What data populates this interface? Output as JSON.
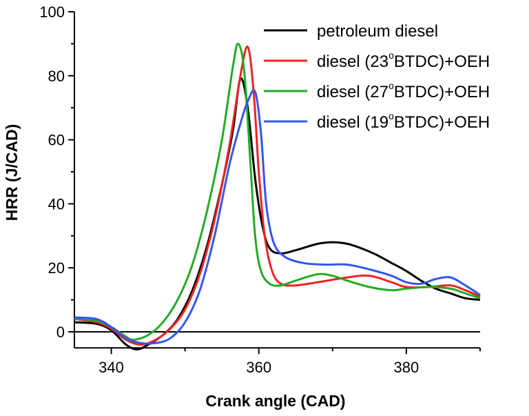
{
  "chart_data": {
    "type": "line",
    "xlabel": "Crank angle (CAD)",
    "ylabel": "HRR (J/CAD)",
    "xlim": [
      335,
      390
    ],
    "ylim": [
      -5,
      100
    ],
    "x_ticks": [
      340,
      360,
      380
    ],
    "y_ticks": [
      0,
      20,
      40,
      60,
      80,
      100
    ],
    "grid": false,
    "legend_position": "top-right",
    "series": [
      {
        "name": "petroleum diesel",
        "legend_parts": [
          "petroleum diesel"
        ],
        "color": "#000000",
        "points": [
          [
            335,
            3
          ],
          [
            338,
            2.5
          ],
          [
            340,
            0.5
          ],
          [
            342,
            -4
          ],
          [
            343.5,
            -5.5
          ],
          [
            345,
            -4
          ],
          [
            347,
            -1
          ],
          [
            349,
            4
          ],
          [
            351,
            13
          ],
          [
            353,
            27
          ],
          [
            355,
            46
          ],
          [
            356.5,
            63
          ],
          [
            357.5,
            79
          ],
          [
            358.5,
            70
          ],
          [
            359.5,
            48
          ],
          [
            360.5,
            33
          ],
          [
            361.5,
            26
          ],
          [
            363,
            24.5
          ],
          [
            365,
            25.5
          ],
          [
            368,
            27.5
          ],
          [
            370,
            28
          ],
          [
            372,
            27.5
          ],
          [
            374,
            26
          ],
          [
            376,
            24
          ],
          [
            378,
            21.5
          ],
          [
            380,
            19
          ],
          [
            382,
            16
          ],
          [
            384,
            13.5
          ],
          [
            386,
            12
          ],
          [
            388,
            10.5
          ],
          [
            390,
            10
          ]
        ]
      },
      {
        "name": "diesel (23oBTDC)+OEH",
        "legend_parts": [
          "diesel (23",
          "o",
          "BTDC)+OEH"
        ],
        "color": "#ee2222",
        "points": [
          [
            335,
            4
          ],
          [
            338,
            3
          ],
          [
            340,
            1
          ],
          [
            342,
            -2.5
          ],
          [
            344,
            -4
          ],
          [
            346,
            -2.5
          ],
          [
            348,
            1
          ],
          [
            350,
            7
          ],
          [
            352,
            18
          ],
          [
            354,
            35
          ],
          [
            356,
            58
          ],
          [
            357.5,
            80
          ],
          [
            358.5,
            89
          ],
          [
            359.3,
            75
          ],
          [
            360,
            50
          ],
          [
            360.8,
            30
          ],
          [
            361.8,
            19
          ],
          [
            363,
            15
          ],
          [
            365,
            14.5
          ],
          [
            368,
            15.5
          ],
          [
            372,
            17
          ],
          [
            375,
            17.5
          ],
          [
            378,
            15.5
          ],
          [
            380,
            14
          ],
          [
            383,
            14
          ],
          [
            386,
            14.5
          ],
          [
            388,
            13
          ],
          [
            390,
            11
          ]
        ]
      },
      {
        "name": "diesel (27oBTDC)+OEH",
        "legend_parts": [
          "diesel (27",
          "o",
          "BTDC)+OEH"
        ],
        "color": "#22aa22",
        "points": [
          [
            335,
            4
          ],
          [
            338,
            3.5
          ],
          [
            340,
            1.5
          ],
          [
            342,
            -1.5
          ],
          [
            343,
            -2.5
          ],
          [
            345,
            -1
          ],
          [
            347,
            3
          ],
          [
            349,
            10
          ],
          [
            351,
            21
          ],
          [
            353,
            38
          ],
          [
            355,
            60
          ],
          [
            356.5,
            83
          ],
          [
            357.2,
            90
          ],
          [
            358,
            82
          ],
          [
            358.8,
            55
          ],
          [
            359.5,
            30
          ],
          [
            360.3,
            19
          ],
          [
            361.5,
            15
          ],
          [
            363,
            14.5
          ],
          [
            365,
            16
          ],
          [
            368,
            18
          ],
          [
            370,
            17.5
          ],
          [
            372,
            16
          ],
          [
            375,
            14
          ],
          [
            378,
            13
          ],
          [
            380,
            13.5
          ],
          [
            383,
            14
          ],
          [
            386,
            13.5
          ],
          [
            388,
            12
          ],
          [
            390,
            10.5
          ]
        ]
      },
      {
        "name": "diesel (19oBTDC)+OEH",
        "legend_parts": [
          "diesel (19",
          "o",
          "BTDC)+OEH"
        ],
        "color": "#3355ee",
        "points": [
          [
            335,
            4.5
          ],
          [
            338,
            4
          ],
          [
            340,
            1.5
          ],
          [
            342,
            -2
          ],
          [
            344,
            -3.5
          ],
          [
            346,
            -3.5
          ],
          [
            348,
            -2
          ],
          [
            350,
            3
          ],
          [
            352,
            13
          ],
          [
            354,
            30
          ],
          [
            356,
            52
          ],
          [
            357.5,
            65
          ],
          [
            358.5,
            72
          ],
          [
            359.5,
            75
          ],
          [
            360.3,
            62
          ],
          [
            361,
            40
          ],
          [
            362,
            28
          ],
          [
            363.5,
            23.5
          ],
          [
            366,
            21.5
          ],
          [
            369,
            21
          ],
          [
            372,
            21
          ],
          [
            375,
            19.5
          ],
          [
            378,
            17.5
          ],
          [
            380,
            15.5
          ],
          [
            382,
            15
          ],
          [
            384,
            16.5
          ],
          [
            386,
            17
          ],
          [
            388,
            14.5
          ],
          [
            390,
            11.5
          ]
        ]
      }
    ]
  }
}
